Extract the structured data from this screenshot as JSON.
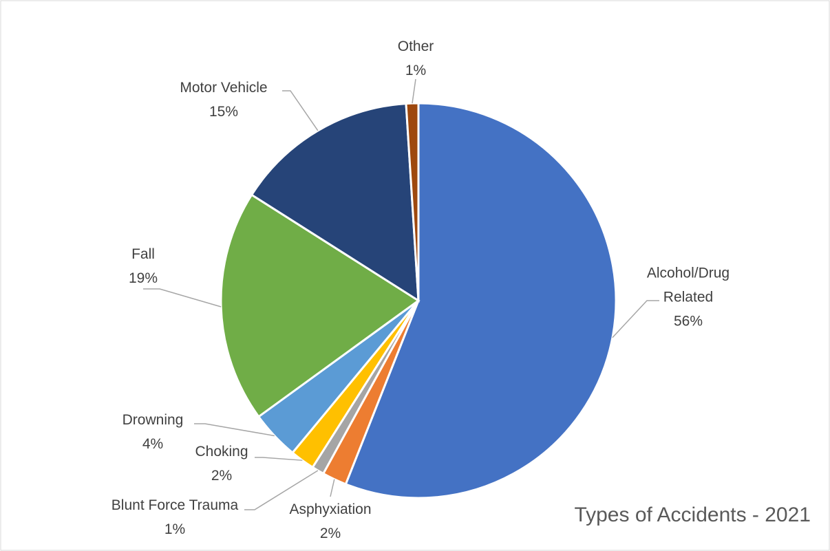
{
  "chart_data": {
    "type": "pie",
    "title": "Types of Accidents - 2021",
    "categories": [
      "Alcohol/Drug Related",
      "Asphyxiation",
      "Blunt Force Trauma",
      "Choking",
      "Drowning",
      "Fall",
      "Motor Vehicle",
      "Other"
    ],
    "values": [
      56,
      2,
      1,
      2,
      4,
      19,
      15,
      1
    ],
    "value_labels": [
      "56%",
      "2%",
      "1%",
      "2%",
      "4%",
      "19%",
      "15%",
      "1%"
    ],
    "colors": [
      "#4472c4",
      "#ed7d31",
      "#a5a5a5",
      "#ffc000",
      "#5b9bd5",
      "#70ad47",
      "#264478",
      "#9e480e"
    ]
  }
}
